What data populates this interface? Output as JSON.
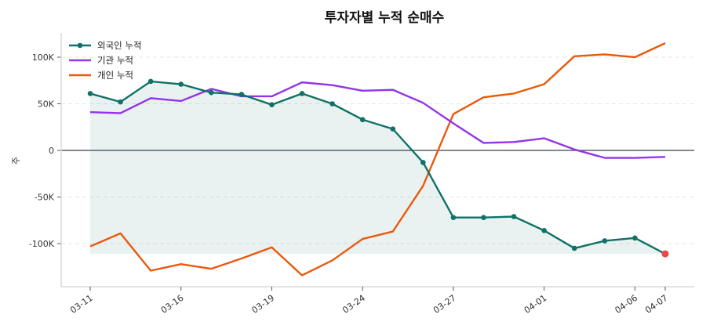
{
  "chart_data": {
    "type": "line",
    "title": "투자자별 누적 순매수",
    "xlabel": "",
    "ylabel": "주",
    "x": [
      "03-11",
      "03-12",
      "03-13",
      "03-16",
      "03-17",
      "03-18",
      "03-19",
      "03-20",
      "03-23",
      "03-24",
      "03-25",
      "03-26",
      "03-27",
      "03-30",
      "03-31",
      "04-01",
      "04-02",
      "04-03",
      "04-06",
      "04-07"
    ],
    "xtick_labels": [
      "03-11",
      "03-16",
      "03-19",
      "03-24",
      "03-27",
      "04-01",
      "04-06",
      "04-07"
    ],
    "ylim": [
      -145000,
      125000
    ],
    "yticks": [
      -100000,
      -50000,
      0,
      50000,
      100000
    ],
    "ytick_labels": [
      "-100K",
      "-50K",
      "0",
      "50K",
      "100K"
    ],
    "grid": "horizontal dashed",
    "legend_position": "top-left",
    "series": [
      {
        "name": "외국인 누적",
        "color": "#0f7266",
        "markers": true,
        "fill": true,
        "values": [
          61000,
          52000,
          74000,
          71000,
          62000,
          60000,
          49000,
          61000,
          50000,
          33000,
          23000,
          -13000,
          -72000,
          -72000,
          -71000,
          -86000,
          -105000,
          -97000,
          -94000,
          -111000
        ]
      },
      {
        "name": "기관 누적",
        "color": "#9333ea",
        "markers": false,
        "values": [
          41000,
          40000,
          56000,
          53000,
          66000,
          58000,
          58000,
          73000,
          70000,
          64000,
          65000,
          51000,
          29000,
          8000,
          9000,
          13000,
          1000,
          -8000,
          -8000,
          -7000
        ]
      },
      {
        "name": "개인 누적",
        "color": "#ea580c",
        "markers": false,
        "values": [
          -103000,
          -89000,
          -129000,
          -122000,
          -127000,
          -116000,
          -104000,
          -134000,
          -118000,
          -95000,
          -87000,
          -38000,
          39000,
          57000,
          61000,
          71000,
          101000,
          103000,
          100000,
          115000
        ]
      }
    ],
    "highlight_last_point_color": "#ef4444"
  }
}
